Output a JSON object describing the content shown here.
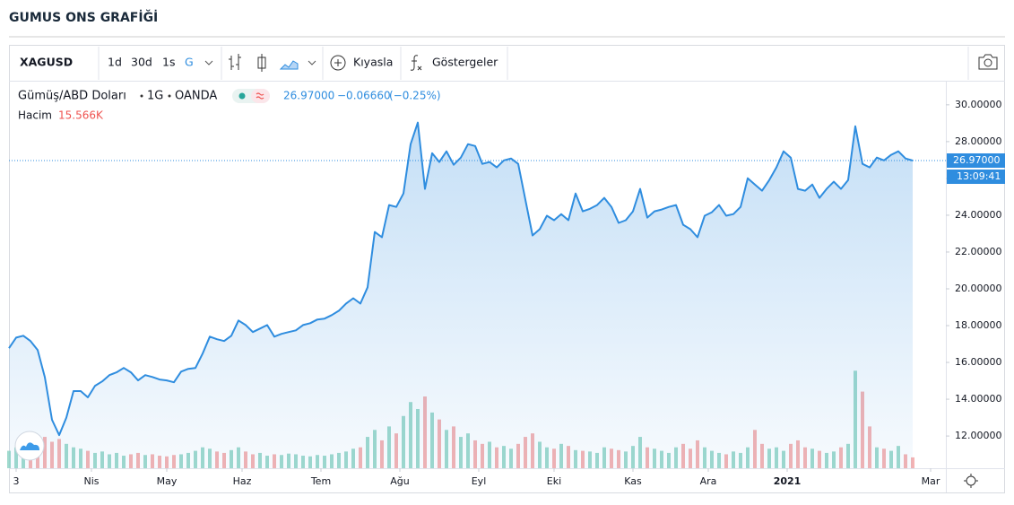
{
  "chart_data": {
    "type": "line",
    "title": "GUMUS ONS GRAFİĞİ",
    "toolbar": {
      "symbol": "XAGUSD",
      "intervals": [
        "1d",
        "30d",
        "1s",
        "G"
      ],
      "active_interval": 3,
      "compare": "Kıyasla",
      "indicators": "Göstergeler"
    },
    "legend": {
      "symbol_name": "Gümüş/ABD Doları",
      "interval": "1G",
      "source": "OANDA",
      "last": {
        "value": 26.97,
        "label": "26.97000"
      },
      "change": {
        "value": -0.0666,
        "label": "−0.06660"
      },
      "change_pct": {
        "value": -0.25,
        "label": "(−0.25%)"
      }
    },
    "countdown": "13:09:41",
    "x": [
      0,
      2,
      4,
      6,
      8,
      10,
      12,
      14,
      16,
      18,
      20,
      22,
      24,
      26,
      28,
      30,
      32,
      34,
      36,
      38,
      40,
      42,
      44,
      46,
      48,
      50,
      52,
      54,
      56,
      58,
      60,
      62,
      64,
      66,
      68,
      70,
      72,
      74,
      76,
      78,
      80,
      82,
      84,
      86,
      88,
      90,
      92,
      94,
      96,
      98,
      100,
      102,
      104,
      106,
      108,
      110,
      112,
      114,
      116,
      118,
      120,
      122,
      124,
      126,
      128,
      130,
      132,
      134,
      136,
      138,
      140,
      142,
      144,
      146,
      148,
      150,
      152,
      154,
      156,
      158,
      160,
      162,
      164,
      166,
      168,
      170,
      172,
      174,
      176,
      178,
      180,
      182,
      184,
      186,
      188,
      190,
      192,
      194,
      196,
      198,
      200,
      202,
      204,
      206,
      208,
      210,
      212,
      214,
      216,
      218,
      220,
      222,
      224,
      226,
      228,
      230,
      232,
      234,
      236,
      238,
      240,
      242,
      244,
      246,
      248,
      250,
      252
    ],
    "series": [
      {
        "name": "Gümüş/ABD Doları",
        "color": "#2f8ddf",
        "values": [
          16.77,
          17.35,
          17.45,
          17.16,
          16.67,
          15.2,
          12.88,
          12.05,
          13.0,
          14.44,
          14.44,
          14.1,
          14.73,
          14.97,
          15.31,
          15.46,
          15.7,
          15.46,
          15.02,
          15.31,
          15.21,
          15.07,
          15.02,
          14.92,
          15.5,
          15.65,
          15.7,
          16.48,
          17.4,
          17.26,
          17.16,
          17.45,
          18.28,
          18.03,
          17.65,
          17.84,
          18.03,
          17.4,
          17.55,
          17.65,
          17.74,
          18.03,
          18.13,
          18.33,
          18.38,
          18.57,
          18.81,
          19.2,
          19.49,
          19.2,
          20.08,
          23.09,
          22.8,
          24.55,
          24.45,
          25.18,
          27.86,
          29.03,
          25.43,
          27.37,
          26.89,
          27.47,
          26.74,
          27.13,
          27.86,
          27.76,
          26.79,
          26.89,
          26.6,
          26.98,
          27.08,
          26.79,
          24.84,
          22.9,
          23.24,
          23.97,
          23.73,
          24.06,
          23.73,
          25.18,
          24.21,
          24.35,
          24.55,
          24.94,
          24.45,
          23.58,
          23.73,
          24.21,
          25.43,
          23.87,
          24.21,
          24.31,
          24.45,
          24.55,
          23.48,
          23.24,
          22.8,
          23.97,
          24.16,
          24.55,
          23.97,
          24.06,
          24.45,
          26.01,
          25.67,
          25.33,
          25.91,
          26.6,
          27.47,
          27.13,
          25.43,
          25.33,
          25.67,
          24.94,
          25.43,
          25.82,
          25.43,
          25.91,
          28.83,
          26.79,
          26.6,
          27.13,
          26.98,
          27.28,
          27.47,
          27.08,
          26.97
        ]
      },
      {
        "name": "Hacim",
        "axis": "volume",
        "up_color": "#8fd3c4",
        "down_color": "#f3a6a6",
        "last_value_label": "15.566K",
        "values": [
          25,
          30,
          28,
          35,
          40,
          45,
          38,
          42,
          35,
          30,
          28,
          25,
          22,
          24,
          20,
          22,
          18,
          20,
          22,
          19,
          20,
          18,
          17,
          19,
          20,
          22,
          25,
          30,
          28,
          24,
          22,
          26,
          30,
          24,
          20,
          22,
          18,
          20,
          19,
          21,
          20,
          18,
          17,
          19,
          18,
          20,
          22,
          24,
          28,
          30,
          45,
          55,
          40,
          60,
          50,
          75,
          95,
          85,
          103,
          80,
          70,
          55,
          60,
          45,
          50,
          40,
          35,
          38,
          30,
          32,
          28,
          35,
          45,
          50,
          38,
          30,
          28,
          35,
          32,
          26,
          25,
          24,
          22,
          30,
          28,
          26,
          24,
          32,
          45,
          30,
          28,
          25,
          22,
          30,
          35,
          28,
          40,
          30,
          25,
          22,
          20,
          24,
          22,
          30,
          55,
          35,
          28,
          30,
          25,
          35,
          40,
          30,
          28,
          25,
          22,
          24,
          30,
          35,
          140,
          110,
          60,
          30,
          28,
          25,
          32,
          20,
          15.566
        ]
      }
    ],
    "xlim": [
      0,
      261.25
    ],
    "xticks": [
      {
        "value": 2,
        "label": "3"
      },
      {
        "value": 23,
        "label": "Nis"
      },
      {
        "value": 44,
        "label": "May"
      },
      {
        "value": 65,
        "label": "Haz"
      },
      {
        "value": 87,
        "label": "Tem"
      },
      {
        "value": 109,
        "label": "Ağu"
      },
      {
        "value": 131,
        "label": "Eyl"
      },
      {
        "value": 152,
        "label": "Eki"
      },
      {
        "value": 174,
        "label": "Kas"
      },
      {
        "value": 195,
        "label": "Ara"
      },
      {
        "value": 217,
        "label": "2021",
        "bold": true
      },
      {
        "value": 257,
        "label": "Mar"
      }
    ],
    "ylim": [
      10.25,
      31.26
    ],
    "yticks": [
      {
        "value": 12,
        "label": "12.00000"
      },
      {
        "value": 14,
        "label": "14.00000"
      },
      {
        "value": 16,
        "label": "16.00000"
      },
      {
        "value": 18,
        "label": "18.00000"
      },
      {
        "value": 20,
        "label": "20.00000"
      },
      {
        "value": 22,
        "label": "22.00000"
      },
      {
        "value": 24,
        "label": "24.00000"
      },
      {
        "value": 26,
        "label": "26.00000"
      },
      {
        "value": 28,
        "label": "28.00000"
      },
      {
        "value": 30,
        "label": "30.00000"
      }
    ],
    "volume_ylim": [
      0,
      555
    ],
    "grid": false
  }
}
